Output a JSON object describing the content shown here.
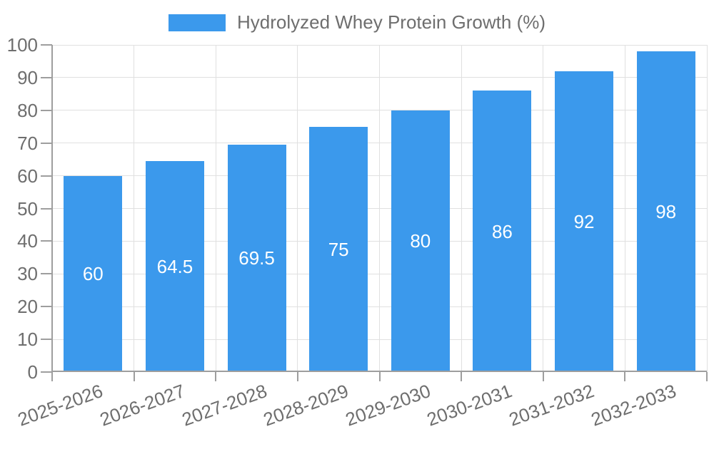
{
  "legend": {
    "label": "Hydrolyzed Whey Protein Growth (%)"
  },
  "chart_data": {
    "type": "bar",
    "categories": [
      "2025-2026",
      "2026-2027",
      "2027-2028",
      "2028-2029",
      "2029-2030",
      "2030-2031",
      "2031-2032",
      "2032-2033"
    ],
    "series": [
      {
        "name": "Hydrolyzed Whey Protein Growth (%)",
        "values": [
          60,
          64.5,
          69.5,
          75,
          80,
          86,
          92,
          98
        ]
      }
    ],
    "value_labels": [
      "60",
      "64.5",
      "69.5",
      "75",
      "80",
      "86",
      "92",
      "98"
    ],
    "ylim": [
      0,
      100
    ],
    "yticks": [
      0,
      10,
      20,
      30,
      40,
      50,
      60,
      70,
      80,
      90,
      100
    ],
    "grid": true,
    "legend_position": "top",
    "bar_color": "#3B99EC",
    "grid_color": "#E0E0E0",
    "axis_color": "#9E9E9E",
    "text_color": "#6E6E6E",
    "value_label_color": "#FFFFFF"
  }
}
